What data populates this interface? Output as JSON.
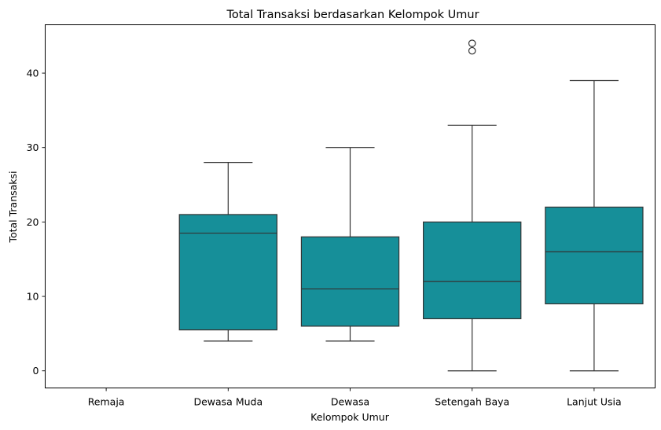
{
  "chart_data": {
    "type": "box",
    "title": "Total Transaksi berdasarkan Kelompok Umur",
    "xlabel": "Kelompok Umur",
    "ylabel": "Total Transaksi",
    "ylim": [
      -2.3,
      46.5
    ],
    "yticks": [
      0,
      10,
      20,
      30,
      40
    ],
    "grid": false,
    "box_color": "#168f99",
    "line_color": "#333333",
    "categories": [
      "Remaja",
      "Dewasa Muda",
      "Dewasa",
      "Setengah Baya",
      "Lanjut Usia"
    ],
    "boxes": [
      null,
      {
        "whisker_low": 4,
        "q1": 5.5,
        "median": 18.5,
        "q3": 21,
        "whisker_high": 28,
        "outliers": []
      },
      {
        "whisker_low": 4,
        "q1": 6,
        "median": 11,
        "q3": 18,
        "whisker_high": 30,
        "outliers": []
      },
      {
        "whisker_low": 0,
        "q1": 7,
        "median": 12,
        "q3": 20,
        "whisker_high": 33,
        "outliers": [
          43,
          44
        ]
      },
      {
        "whisker_low": 0,
        "q1": 9,
        "median": 16,
        "q3": 22,
        "whisker_high": 39,
        "outliers": []
      }
    ]
  }
}
